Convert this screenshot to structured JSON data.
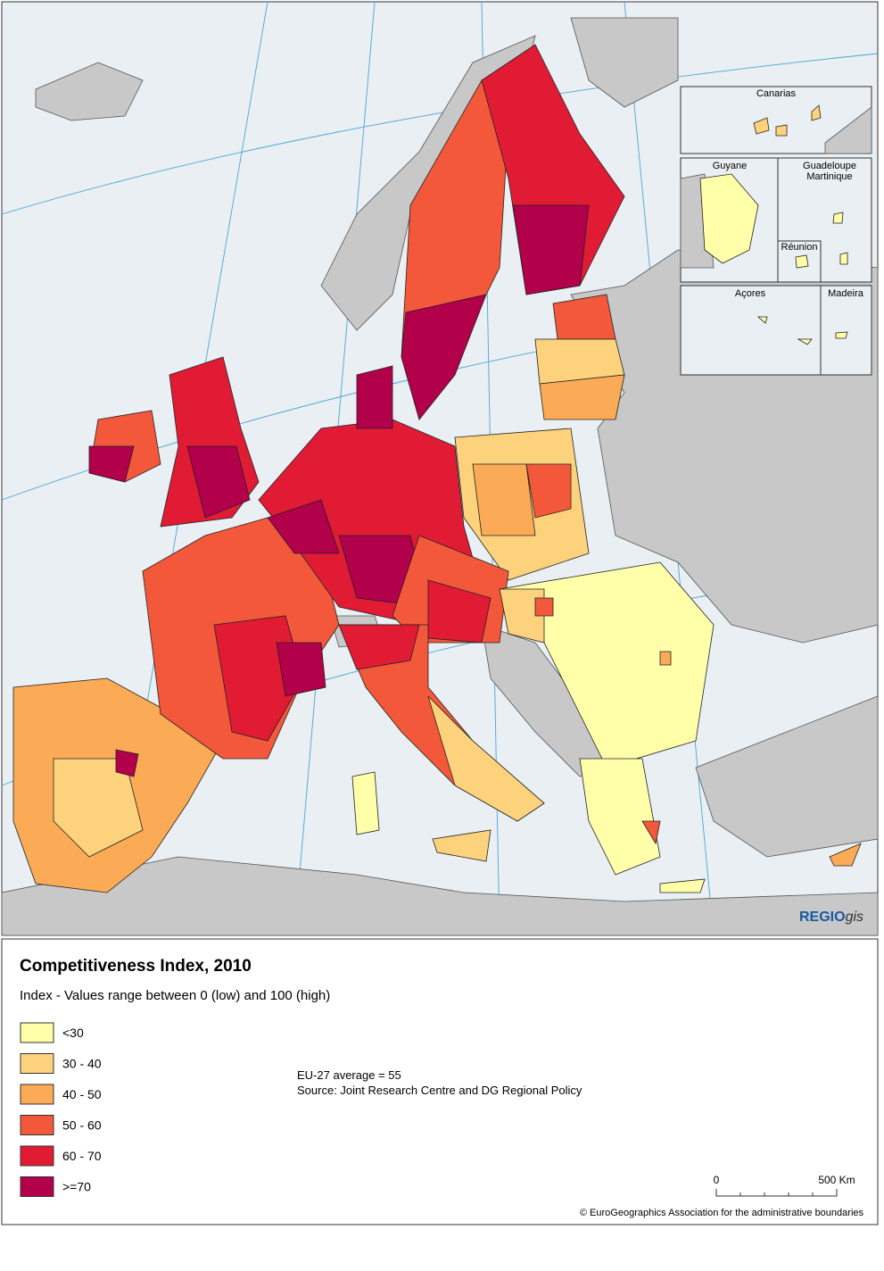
{
  "insets": {
    "canarias": "Canarias",
    "guyane": "Guyane",
    "guadeloupe": "Guadeloupe",
    "martinique": "Martinique",
    "reunion": "Réunion",
    "acores": "Açores",
    "madeira": "Madeira"
  },
  "logo": {
    "bold": "REGIO",
    "italic": "gis"
  },
  "legend": {
    "title": "Competitiveness Index, 2010",
    "subtitle": "Index - Values range between 0 (low) and 100 (high)",
    "items": [
      {
        "label": "<30",
        "color": "#ffffaa"
      },
      {
        "label": "30 - 40",
        "color": "#fdd27c"
      },
      {
        "label": "40 - 50",
        "color": "#fbaa56"
      },
      {
        "label": "50 - 60",
        "color": "#f4583b"
      },
      {
        "label": "60 - 70",
        "color": "#e21b35"
      },
      {
        "label": ">=70",
        "color": "#b3004b"
      }
    ]
  },
  "notes": [
    "EU-27 average = 55",
    "Source: Joint Research Centre and DG Regional Policy"
  ],
  "scale_bar": {
    "start": "0",
    "end": "500 Km"
  },
  "copyright": "© EuroGeographics Association for the administrative boundaries"
}
